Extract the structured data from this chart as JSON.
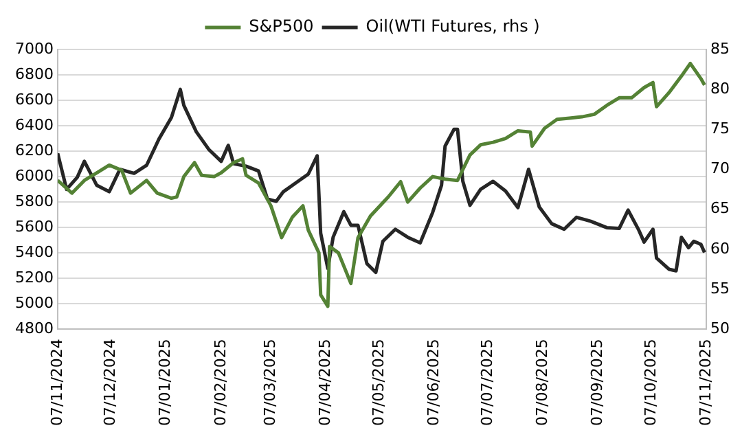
{
  "chart_data": {
    "type": "line",
    "legend": "top",
    "grid": "y",
    "marker": "none",
    "line_style": "solid",
    "xlim": [
      "2024-11-07",
      "2025-11-07"
    ],
    "xticks": [
      {
        "value": "2024-11-07",
        "label": "07/11/2024"
      },
      {
        "value": "2024-12-07",
        "label": "07/12/2024"
      },
      {
        "value": "2025-01-07",
        "label": "07/01/2025"
      },
      {
        "value": "2025-02-07",
        "label": "07/02/2025"
      },
      {
        "value": "2025-03-07",
        "label": "07/03/2025"
      },
      {
        "value": "2025-04-07",
        "label": "07/04/2025"
      },
      {
        "value": "2025-05-07",
        "label": "07/05/2025"
      },
      {
        "value": "2025-06-07",
        "label": "07/06/2025"
      },
      {
        "value": "2025-07-07",
        "label": "07/07/2025"
      },
      {
        "value": "2025-08-07",
        "label": "07/08/2025"
      },
      {
        "value": "2025-09-07",
        "label": "07/09/2025"
      },
      {
        "value": "2025-10-07",
        "label": "07/10/2025"
      },
      {
        "value": "2025-11-07",
        "label": "07/11/2025"
      }
    ],
    "ylim": [
      4800,
      7000
    ],
    "yticks": [
      4800,
      5000,
      5200,
      5400,
      5600,
      5800,
      6000,
      6200,
      6400,
      6600,
      6800,
      7000
    ],
    "y2lim": [
      50,
      85
    ],
    "y2ticks": [
      50,
      55,
      60,
      65,
      70,
      75,
      80,
      85
    ],
    "series": [
      {
        "name": "S&P500",
        "color": "#548235",
        "x": [
          "2024-11-07",
          "2024-11-15",
          "2024-11-22",
          "2024-11-29",
          "2024-12-06",
          "2024-12-13",
          "2024-12-18",
          "2024-12-27",
          "2025-01-02",
          "2025-01-10",
          "2025-01-13",
          "2025-01-17",
          "2025-01-23",
          "2025-01-27",
          "2025-02-03",
          "2025-02-07",
          "2025-02-14",
          "2025-02-19",
          "2025-02-21",
          "2025-02-28",
          "2025-03-07",
          "2025-03-13",
          "2025-03-19",
          "2025-03-25",
          "2025-03-28",
          "2025-04-03",
          "2025-04-04",
          "2025-04-08",
          "2025-04-09",
          "2025-04-14",
          "2025-04-21",
          "2025-04-25",
          "2025-05-02",
          "2025-05-12",
          "2025-05-19",
          "2025-05-23",
          "2025-05-30",
          "2025-06-06",
          "2025-06-13",
          "2025-06-20",
          "2025-06-27",
          "2025-07-03",
          "2025-07-10",
          "2025-07-17",
          "2025-07-24",
          "2025-07-31",
          "2025-08-01",
          "2025-08-08",
          "2025-08-15",
          "2025-08-22",
          "2025-08-29",
          "2025-09-05",
          "2025-09-12",
          "2025-09-19",
          "2025-09-26",
          "2025-10-03",
          "2025-10-08",
          "2025-10-10",
          "2025-10-17",
          "2025-10-24",
          "2025-10-29",
          "2025-11-04",
          "2025-11-06"
        ],
        "values": [
          5970,
          5870,
          5970,
          6030,
          6090,
          6050,
          5870,
          5970,
          5870,
          5830,
          5840,
          6000,
          6110,
          6010,
          6000,
          6030,
          6110,
          6140,
          6010,
          5950,
          5770,
          5520,
          5680,
          5770,
          5580,
          5400,
          5070,
          4980,
          5450,
          5400,
          5160,
          5520,
          5690,
          5840,
          5960,
          5800,
          5910,
          6000,
          5980,
          5970,
          6170,
          6250,
          6270,
          6300,
          6360,
          6350,
          6240,
          6380,
          6450,
          6460,
          6470,
          6490,
          6560,
          6620,
          6620,
          6700,
          6740,
          6550,
          6660,
          6790,
          6890,
          6770,
          6720
        ]
      },
      {
        "name": "Oil(WTI Futures, rhs )",
        "color": "#262626",
        "axis": "y2",
        "x": [
          "2024-11-07",
          "2024-11-12",
          "2024-11-18",
          "2024-11-22",
          "2024-11-29",
          "2024-12-06",
          "2024-12-12",
          "2024-12-20",
          "2024-12-27",
          "2025-01-03",
          "2025-01-10",
          "2025-01-15",
          "2025-01-17",
          "2025-01-24",
          "2025-01-31",
          "2025-02-07",
          "2025-02-11",
          "2025-02-14",
          "2025-02-21",
          "2025-02-28",
          "2025-03-05",
          "2025-03-10",
          "2025-03-14",
          "2025-03-21",
          "2025-03-28",
          "2025-04-02",
          "2025-04-03",
          "2025-04-04",
          "2025-04-08",
          "2025-04-11",
          "2025-04-17",
          "2025-04-21",
          "2025-04-25",
          "2025-04-30",
          "2025-05-05",
          "2025-05-09",
          "2025-05-16",
          "2025-05-23",
          "2025-05-30",
          "2025-06-06",
          "2025-06-11",
          "2025-06-13",
          "2025-06-18",
          "2025-06-20",
          "2025-06-23",
          "2025-06-27",
          "2025-07-03",
          "2025-07-10",
          "2025-07-17",
          "2025-07-24",
          "2025-07-30",
          "2025-08-05",
          "2025-08-12",
          "2025-08-19",
          "2025-08-26",
          "2025-09-03",
          "2025-09-12",
          "2025-09-19",
          "2025-09-24",
          "2025-09-30",
          "2025-10-03",
          "2025-10-08",
          "2025-10-10",
          "2025-10-17",
          "2025-10-21",
          "2025-10-24",
          "2025-10-28",
          "2025-10-31",
          "2025-11-04",
          "2025-11-06"
        ],
        "values": [
          72,
          67.5,
          69,
          71,
          68,
          67.2,
          70,
          69.5,
          70.5,
          73.8,
          76.5,
          80,
          78,
          74.7,
          72.5,
          71,
          73,
          70.7,
          70.4,
          69.8,
          66.3,
          66,
          67.2,
          68.3,
          69.4,
          71.7,
          66.9,
          62,
          57.6,
          61.5,
          64.7,
          63,
          63,
          58.2,
          57.1,
          61,
          62.5,
          61.5,
          60.8,
          64.6,
          68,
          72.9,
          75,
          75,
          68.5,
          65.5,
          67.5,
          68.5,
          67.3,
          65.2,
          70,
          65.3,
          63.2,
          62.5,
          64,
          63.5,
          62.7,
          62.6,
          64.9,
          62.4,
          60.9,
          62.5,
          58.9,
          57.5,
          57.3,
          61.5,
          60.2,
          61,
          60.6,
          59.6
        ]
      }
    ]
  }
}
